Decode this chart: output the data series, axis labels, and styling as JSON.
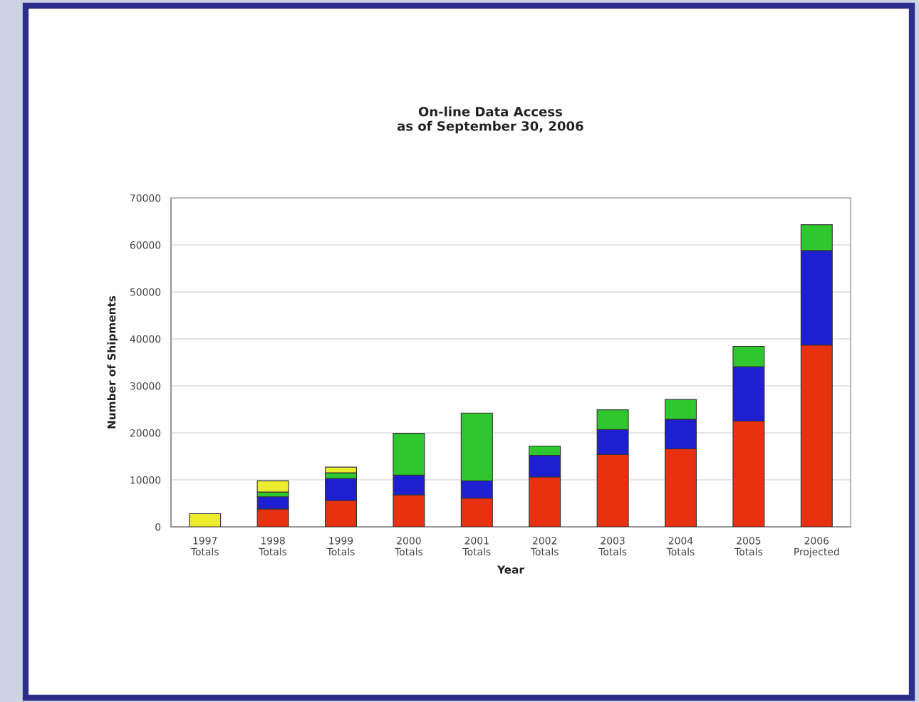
{
  "chart_data": {
    "type": "bar",
    "stacked": true,
    "title": "On-line Data Access\nas of September 30, 2006",
    "xlabel": "Year",
    "ylabel": "Number of Shipments",
    "categories": [
      "1997\nTotals",
      "1998\nTotals",
      "1999\nTotals",
      "2000\nTotals",
      "2001\nTotals",
      "2002\nTotals",
      "2003\nTotals",
      "2004\nTotals",
      "2005\nTotals",
      "2006\nProjected"
    ],
    "series": [
      {
        "color": "#e8320f",
        "values": [
          null,
          3800,
          5600,
          6800,
          6100,
          10600,
          15400,
          16600,
          22500,
          38700
        ]
      },
      {
        "color": "#1f1fd2",
        "values": [
          null,
          2600,
          4700,
          4200,
          3700,
          4600,
          5300,
          6300,
          11600,
          20100
        ]
      },
      {
        "color": "#2ec82e",
        "values": [
          null,
          1000,
          1200,
          8900,
          14400,
          2000,
          4200,
          4200,
          4300,
          5500
        ]
      },
      {
        "color": "#ecec2c",
        "values": [
          2800,
          2400,
          1200,
          null,
          null,
          null,
          null,
          null,
          null,
          null
        ]
      }
    ],
    "ylim": [
      0,
      70000
    ],
    "yticks": [
      0,
      10000,
      20000,
      30000,
      40000,
      50000,
      60000,
      70000
    ],
    "grid": "y"
  }
}
